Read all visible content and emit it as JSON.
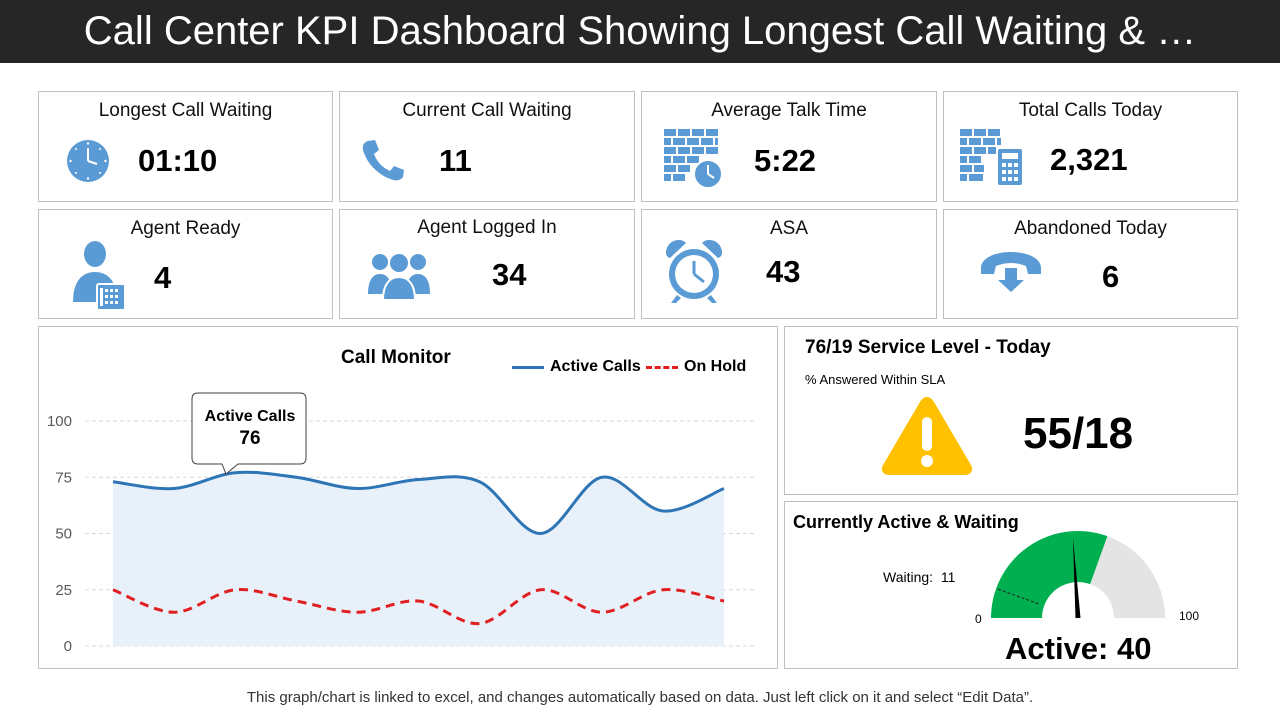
{
  "page": {
    "title": "Call Center KPI Dashboard Showing Longest Call Waiting & …",
    "footer": "This graph/chart is linked to excel, and changes automatically  based on data. Just left click on it and select “Edit Data”."
  },
  "kpis": [
    {
      "label": "Longest Call Waiting",
      "value": "01:10",
      "icon": "clock-icon"
    },
    {
      "label": "Current Call Waiting",
      "value": "11",
      "icon": "phone-icon"
    },
    {
      "label": "Average Talk Time",
      "value": "5:22",
      "icon": "building-clock-icon"
    },
    {
      "label": "Total Calls Today",
      "value": "2,321",
      "icon": "building-calculator-icon"
    },
    {
      "label": "Agent Ready",
      "value": "4",
      "icon": "agent-phone-icon"
    },
    {
      "label": "Agent Logged In",
      "value": "34",
      "icon": "group-icon"
    },
    {
      "label": "ASA",
      "value": "43",
      "icon": "alarm-clock-icon"
    },
    {
      "label": "Abandoned Today",
      "value": "6",
      "icon": "hang-up-phone-icon"
    }
  ],
  "colors": {
    "accent_blue": "#5b9bd5",
    "active_line": "#2e75b6",
    "area_fill": "#e8f0f9",
    "on_hold_line": "#e02020",
    "gauge_green": "#00b050",
    "gauge_grey": "#e4e4e4",
    "warning": "#ffc000",
    "title_bar": "#262626"
  },
  "call_monitor": {
    "title": "Call Monitor",
    "callout_label": "Active Calls",
    "callout_value": "76"
  },
  "sla": {
    "title": "76/19 Service Level - Today",
    "subtitle": "% Answered Within SLA",
    "value": "55/18",
    "icon": "warning-icon"
  },
  "gauge": {
    "title": "Currently Active & Waiting",
    "waiting_label": "Waiting:  11",
    "min_label": "0",
    "max_label": "100",
    "active_label": "Active: 40",
    "waiting": 11,
    "active": 40,
    "green_fraction": 0.61,
    "needle_value": 48,
    "range": [
      0,
      100
    ]
  },
  "chart_data": {
    "type": "line",
    "title": "Call Monitor",
    "x": [
      0,
      1,
      2,
      3,
      4,
      5,
      6,
      7,
      8,
      9,
      10
    ],
    "series": [
      {
        "name": "Active Calls",
        "values": [
          73,
          70,
          77,
          75,
          70,
          74,
          73,
          50,
          75,
          60,
          70
        ],
        "style": "solid-area"
      },
      {
        "name": "On Hold",
        "values": [
          25,
          15,
          25,
          20,
          15,
          20,
          10,
          25,
          15,
          25,
          20
        ],
        "style": "dashed"
      }
    ],
    "ylim": [
      0,
      100
    ],
    "yticks": [
      "0",
      "25",
      "50",
      "75",
      "100"
    ],
    "grid": true,
    "legend": "top-right",
    "xlabel": "",
    "ylabel": ""
  }
}
